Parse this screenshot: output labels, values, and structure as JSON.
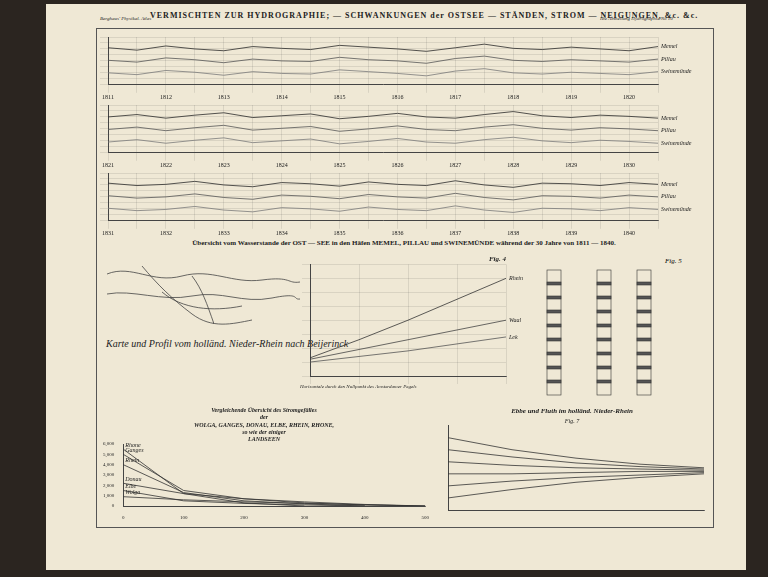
{
  "page": {
    "header_left": "Berghaus' Physikal. Atlas",
    "header_right": "IIte Abtheilung Hydrographie No 10",
    "title": "VERMISCHTEN ZUR HYDROGRAPHIE; — SCHWANKUNGEN der OSTSEE — STÄNDEN, STROM — NEIGUNGEN, &c. &c.",
    "water_level_caption": "Übersicht vom Wasserstande der OST — SEE in den Häfen MEMEL, PILLAU und SWINEMÜNDE während der 30 Jahre von 1811 — 1840.",
    "map_title": "Karte und Profil vom holländ. Nieder-Rhein nach Beijerinck",
    "fig4_annotation": "Horizontale durch den Nullpunkt des Amsterdamer Pegels",
    "fig5_title": "Fig. 5"
  },
  "chart_data": [
    {
      "type": "line",
      "categories": [
        "1811",
        null,
        "1812",
        null,
        "1813",
        null,
        "1814",
        null,
        "1815",
        null,
        "1816",
        null,
        "1817",
        null,
        "1818",
        null,
        "1819",
        null,
        "1820",
        null
      ],
      "ylim": [
        0,
        8
      ],
      "yticks": [
        0,
        1,
        2,
        3,
        4,
        5,
        6,
        7,
        8
      ],
      "grid": true,
      "tick_labels": "x",
      "series": [
        {
          "name": "Memel",
          "color": "#2a2a2a",
          "values": [
            6.2,
            5.8,
            6.5,
            6.0,
            5.7,
            6.4,
            6.1,
            5.9,
            6.6,
            6.3,
            6.0,
            5.6,
            6.2,
            6.8,
            6.1,
            5.9,
            6.3,
            6.0,
            5.7,
            6.4
          ]
        },
        {
          "name": "Pillau",
          "color": "#555555",
          "values": [
            4.1,
            3.8,
            4.5,
            4.2,
            3.7,
            4.3,
            4.0,
            3.9,
            4.6,
            4.2,
            4.0,
            3.6,
            4.4,
            4.8,
            4.1,
            3.9,
            4.2,
            4.0,
            3.8,
            4.3
          ]
        },
        {
          "name": "Swinemünde",
          "color": "#7a7a7a",
          "values": [
            2.0,
            1.7,
            2.4,
            2.1,
            1.6,
            2.2,
            1.9,
            1.8,
            2.5,
            2.2,
            1.9,
            1.5,
            2.3,
            2.7,
            2.0,
            1.8,
            2.1,
            1.9,
            1.7,
            2.2
          ]
        }
      ]
    },
    {
      "type": "line",
      "categories": [
        "1821",
        null,
        "1822",
        null,
        "1823",
        null,
        "1824",
        null,
        "1825",
        null,
        "1826",
        null,
        "1827",
        null,
        "1828",
        null,
        "1829",
        null,
        "1830",
        null
      ],
      "ylim": [
        0,
        8
      ],
      "yticks": [
        0,
        1,
        2,
        3,
        4,
        5,
        6,
        7,
        8
      ],
      "grid": true,
      "tick_labels": "x",
      "series": [
        {
          "name": "Memel",
          "color": "#2a2a2a",
          "values": [
            6.0,
            6.4,
            5.8,
            6.3,
            6.7,
            5.9,
            6.2,
            6.5,
            5.7,
            6.1,
            6.6,
            6.0,
            5.8,
            6.4,
            6.9,
            6.2,
            5.9,
            6.3,
            6.1,
            5.8
          ]
        },
        {
          "name": "Pillau",
          "color": "#555555",
          "values": [
            3.9,
            4.3,
            3.7,
            4.2,
            4.6,
            3.8,
            4.1,
            4.4,
            3.6,
            4.0,
            4.5,
            3.9,
            3.7,
            4.3,
            4.7,
            4.1,
            3.8,
            4.2,
            4.0,
            3.7
          ]
        },
        {
          "name": "Swinemünde",
          "color": "#7a7a7a",
          "values": [
            1.8,
            2.2,
            1.6,
            2.1,
            2.5,
            1.7,
            2.0,
            2.3,
            1.5,
            1.9,
            2.4,
            1.8,
            1.6,
            2.2,
            2.6,
            2.0,
            1.7,
            2.1,
            1.9,
            1.6
          ]
        }
      ]
    },
    {
      "type": "line",
      "categories": [
        "1831",
        null,
        "1832",
        null,
        "1833",
        null,
        "1834",
        null,
        "1835",
        null,
        "1836",
        null,
        "1837",
        null,
        "1838",
        null,
        "1839",
        null,
        "1840",
        null
      ],
      "ylim": [
        0,
        8
      ],
      "yticks": [
        0,
        1,
        2,
        3,
        4,
        5,
        6,
        7,
        8
      ],
      "grid": true,
      "tick_labels": "x",
      "series": [
        {
          "name": "Memel",
          "color": "#2a2a2a",
          "values": [
            6.3,
            5.9,
            6.1,
            6.6,
            6.0,
            5.7,
            6.4,
            6.2,
            5.8,
            6.5,
            6.1,
            5.9,
            6.7,
            6.0,
            5.6,
            6.3,
            6.2,
            5.9,
            6.4,
            6.1
          ]
        },
        {
          "name": "Pillau",
          "color": "#555555",
          "values": [
            4.2,
            3.8,
            4.0,
            4.5,
            3.9,
            3.6,
            4.3,
            4.1,
            3.7,
            4.4,
            4.0,
            3.8,
            4.6,
            3.9,
            3.5,
            4.2,
            4.1,
            3.8,
            4.3,
            4.0
          ]
        },
        {
          "name": "Swinemünde",
          "color": "#7a7a7a",
          "values": [
            2.1,
            1.7,
            1.9,
            2.4,
            1.8,
            1.5,
            2.2,
            2.0,
            1.6,
            2.3,
            1.9,
            1.7,
            2.5,
            1.8,
            1.4,
            2.1,
            2.0,
            1.7,
            2.2,
            1.9
          ]
        }
      ]
    },
    {
      "type": "line",
      "title": "Fig. 4",
      "x": [
        0,
        2,
        4,
        6,
        8
      ],
      "xlim": [
        0,
        8
      ],
      "xticks": [
        0,
        2,
        4,
        6,
        8
      ],
      "ylim": [
        -1,
        7
      ],
      "yticks": [
        -1,
        0,
        1,
        2,
        3,
        4,
        5,
        6,
        7
      ],
      "grid": true,
      "tick_labels": false,
      "series": [
        {
          "name": "Rhein",
          "color": "#333333",
          "values": [
            0.3,
            1.6,
            3.0,
            4.5,
            6.0
          ]
        },
        {
          "name": "Waal",
          "color": "#444444",
          "values": [
            0.2,
            0.9,
            1.6,
            2.3,
            3.0
          ]
        },
        {
          "name": "Lek",
          "color": "#555555",
          "values": [
            0.0,
            0.4,
            0.8,
            1.3,
            1.8
          ]
        }
      ]
    },
    {
      "type": "line",
      "title": [
        "Vergleichende Übersicht des Stromgefälles",
        "der",
        "WOLGA, GANGES, DONAU, ELBE, RHEIN, RHONE,",
        "so wie der einiger",
        "LANDSEEN"
      ],
      "x": [
        0,
        100,
        200,
        300,
        400,
        500
      ],
      "xlim": [
        0,
        500
      ],
      "xticks": [
        0,
        100,
        200,
        300,
        400,
        500
      ],
      "ylim": [
        0,
        6000
      ],
      "yticks": [
        0,
        1000,
        2000,
        3000,
        4000,
        5000,
        6000
      ],
      "grid": false,
      "series": [
        {
          "name": "Wolga",
          "color": "#333333",
          "values": [
            900,
            600,
            400,
            250,
            120,
            0
          ]
        },
        {
          "name": "Ganges",
          "color": "#333333",
          "values": [
            5000,
            1500,
            700,
            300,
            100,
            0
          ]
        },
        {
          "name": "Donau",
          "color": "#333333",
          "values": [
            2200,
            1200,
            700,
            400,
            150,
            0
          ]
        },
        {
          "name": "Elbe",
          "color": "#333333",
          "values": [
            1500,
            500,
            250,
            100,
            0,
            null
          ]
        },
        {
          "name": "Rhein",
          "color": "#333333",
          "values": [
            4000,
            1300,
            500,
            200,
            0,
            null
          ]
        },
        {
          "name": "Rhone",
          "color": "#333333",
          "values": [
            5500,
            1200,
            300,
            0,
            null,
            null
          ]
        }
      ]
    },
    {
      "type": "line",
      "title": "Ebbe und Fluth im holländ. Nieder-Rhein",
      "subtitle": "Fig. 7",
      "x": [
        0,
        1,
        2,
        3,
        4
      ],
      "xlim": [
        0,
        4
      ],
      "xticks": [
        0,
        1,
        2,
        3,
        4
      ],
      "ylim": [
        0,
        7
      ],
      "yticks": [
        0,
        1,
        2,
        3,
        4,
        5,
        6,
        7
      ],
      "grid": false,
      "tick_labels": false,
      "series": [
        {
          "color": "#333333",
          "values": [
            6.0,
            5.0,
            4.3,
            3.8,
            3.5
          ]
        },
        {
          "color": "#333333",
          "values": [
            5.0,
            4.4,
            3.9,
            3.6,
            3.4
          ]
        },
        {
          "color": "#333333",
          "values": [
            4.0,
            3.7,
            3.5,
            3.4,
            3.3
          ]
        },
        {
          "color": "#333333",
          "values": [
            3.0,
            3.0,
            3.1,
            3.2,
            3.2
          ]
        },
        {
          "color": "#333333",
          "values": [
            2.0,
            2.4,
            2.7,
            2.9,
            3.1
          ]
        },
        {
          "color": "#333333",
          "values": [
            1.0,
            1.7,
            2.3,
            2.7,
            3.0
          ]
        }
      ]
    }
  ]
}
